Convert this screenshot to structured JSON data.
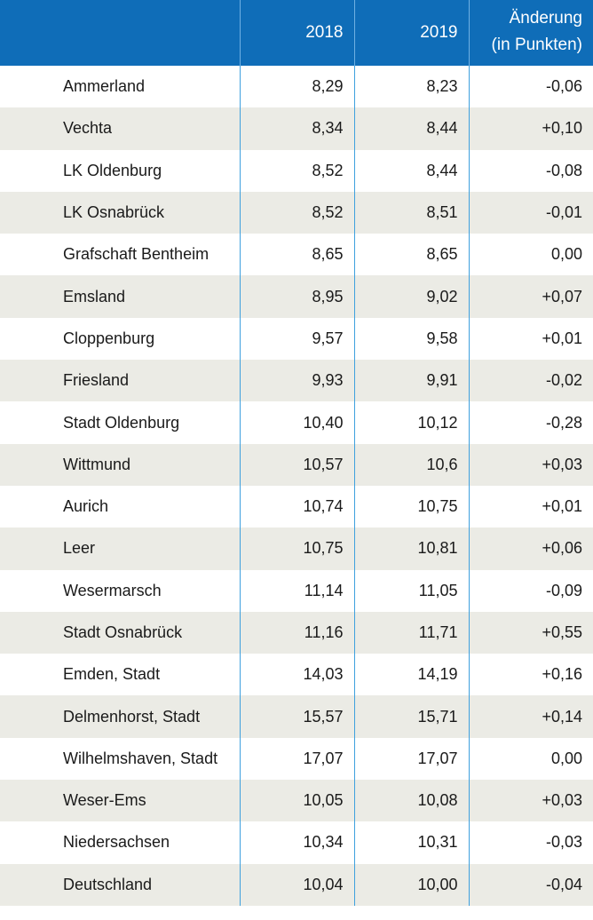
{
  "header": {
    "col_region": "",
    "col_2018": "2018",
    "col_2019": "2019",
    "col_change_line1": "Änderung",
    "col_change_line2": "(in Punkten)"
  },
  "rows": [
    {
      "name": "Ammerland",
      "v2018": "8,29",
      "v2019": "8,23",
      "change": "-0,06"
    },
    {
      "name": "Vechta",
      "v2018": "8,34",
      "v2019": "8,44",
      "change": "+0,10"
    },
    {
      "name": "LK Oldenburg",
      "v2018": "8,52",
      "v2019": "8,44",
      "change": "-0,08"
    },
    {
      "name": "LK Osnabrück",
      "v2018": "8,52",
      "v2019": "8,51",
      "change": "-0,01"
    },
    {
      "name": "Grafschaft Bentheim",
      "v2018": "8,65",
      "v2019": "8,65",
      "change": "0,00"
    },
    {
      "name": "Emsland",
      "v2018": "8,95",
      "v2019": "9,02",
      "change": "+0,07"
    },
    {
      "name": "Cloppenburg",
      "v2018": "9,57",
      "v2019": "9,58",
      "change": "+0,01"
    },
    {
      "name": "Friesland",
      "v2018": "9,93",
      "v2019": "9,91",
      "change": "-0,02"
    },
    {
      "name": "Stadt Oldenburg",
      "v2018": "10,40",
      "v2019": "10,12",
      "change": "-0,28"
    },
    {
      "name": "Wittmund",
      "v2018": "10,57",
      "v2019": "10,6",
      "change": "+0,03"
    },
    {
      "name": "Aurich",
      "v2018": "10,74",
      "v2019": "10,75",
      "change": "+0,01"
    },
    {
      "name": "Leer",
      "v2018": "10,75",
      "v2019": "10,81",
      "change": "+0,06"
    },
    {
      "name": "Wesermarsch",
      "v2018": "11,14",
      "v2019": "11,05",
      "change": "-0,09"
    },
    {
      "name": "Stadt Osnabrück",
      "v2018": "11,16",
      "v2019": "11,71",
      "change": "+0,55"
    },
    {
      "name": "Emden, Stadt",
      "v2018": "14,03",
      "v2019": "14,19",
      "change": "+0,16"
    },
    {
      "name": "Delmenhorst, Stadt",
      "v2018": "15,57",
      "v2019": "15,71",
      "change": "+0,14"
    },
    {
      "name": "Wilhelmshaven, Stadt",
      "v2018": "17,07",
      "v2019": "17,07",
      "change": "0,00"
    },
    {
      "name": "Weser-Ems",
      "v2018": "10,05",
      "v2019": "10,08",
      "change": "+0,03"
    },
    {
      "name": "Niedersachsen",
      "v2018": "10,34",
      "v2019": "10,31",
      "change": "-0,03"
    },
    {
      "name": "Deutschland",
      "v2018": "10,04",
      "v2019": "10,00",
      "change": "-0,04"
    }
  ]
}
